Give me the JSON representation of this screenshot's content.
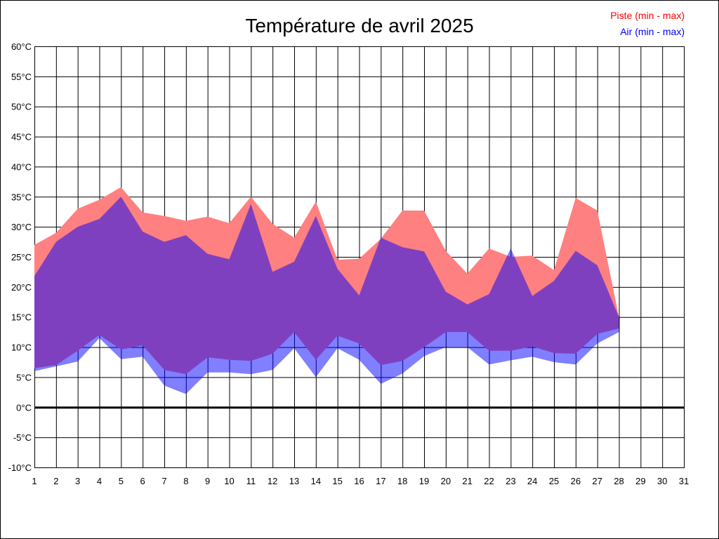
{
  "chart_data": {
    "type": "area",
    "title": "Température de avril 2025",
    "xlabel": "",
    "ylabel": "",
    "x": [
      1,
      2,
      3,
      4,
      5,
      6,
      7,
      8,
      9,
      10,
      11,
      12,
      13,
      14,
      15,
      16,
      17,
      18,
      19,
      20,
      21,
      22,
      23,
      24,
      25,
      26,
      27,
      28,
      29,
      30,
      31
    ],
    "xlim": [
      1,
      31
    ],
    "ylim": [
      -10,
      60
    ],
    "y_ticks": [
      -10,
      -5,
      0,
      5,
      10,
      15,
      20,
      25,
      30,
      35,
      40,
      45,
      50,
      55,
      60
    ],
    "y_tick_labels": [
      "-10°C",
      "-5°C",
      "0°C",
      "5°C",
      "10°C",
      "15°C",
      "20°C",
      "25°C",
      "30°C",
      "35°C",
      "40°C",
      "45°C",
      "50°C",
      "55°C",
      "60°C"
    ],
    "x_tick_labels": [
      "1",
      "2",
      "3",
      "4",
      "5",
      "6",
      "7",
      "8",
      "9",
      "10",
      "11",
      "12",
      "13",
      "14",
      "15",
      "16",
      "17",
      "18",
      "19",
      "20",
      "21",
      "22",
      "23",
      "24",
      "25",
      "26",
      "27",
      "28",
      "29",
      "30",
      "31"
    ],
    "grid": true,
    "legend_position": "top-right",
    "series": [
      {
        "name": "Piste (min - max)",
        "color": "#ff0000",
        "min": [
          6.5,
          7.0,
          9.4,
          12.0,
          9.6,
          10.3,
          6.2,
          5.5,
          8.3,
          7.9,
          7.7,
          8.9,
          12.5,
          7.9,
          11.9,
          10.6,
          7.0,
          7.7,
          10.0,
          12.5,
          12.5,
          9.4,
          9.4,
          10.1,
          9.0,
          8.9,
          12.2,
          13.1
        ],
        "max": [
          27.0,
          29.0,
          33.0,
          34.5,
          36.6,
          32.4,
          31.8,
          31.0,
          31.7,
          30.6,
          35.0,
          30.5,
          28.2,
          34.2,
          24.5,
          24.7,
          28.0,
          32.7,
          32.7,
          26.0,
          22.2,
          26.4,
          25.0,
          25.2,
          22.8,
          34.8,
          32.7,
          15.0
        ]
      },
      {
        "name": "Air (min - max)",
        "color": "#0000ff",
        "min": [
          6.0,
          6.8,
          7.6,
          11.5,
          8.0,
          8.4,
          3.6,
          2.2,
          5.8,
          5.8,
          5.5,
          6.2,
          9.8,
          5.0,
          9.8,
          7.9,
          3.9,
          5.6,
          8.5,
          10.0,
          10.0,
          7.1,
          7.8,
          8.4,
          7.5,
          7.1,
          10.6,
          12.5
        ],
        "max": [
          21.8,
          27.5,
          30.0,
          31.3,
          35.0,
          29.2,
          27.5,
          28.6,
          25.5,
          24.6,
          33.8,
          22.5,
          24.2,
          31.8,
          23.0,
          18.6,
          28.2,
          26.6,
          25.9,
          19.2,
          17.1,
          18.8,
          26.4,
          18.5,
          21.0,
          26.0,
          23.6,
          15.0
        ]
      }
    ]
  }
}
